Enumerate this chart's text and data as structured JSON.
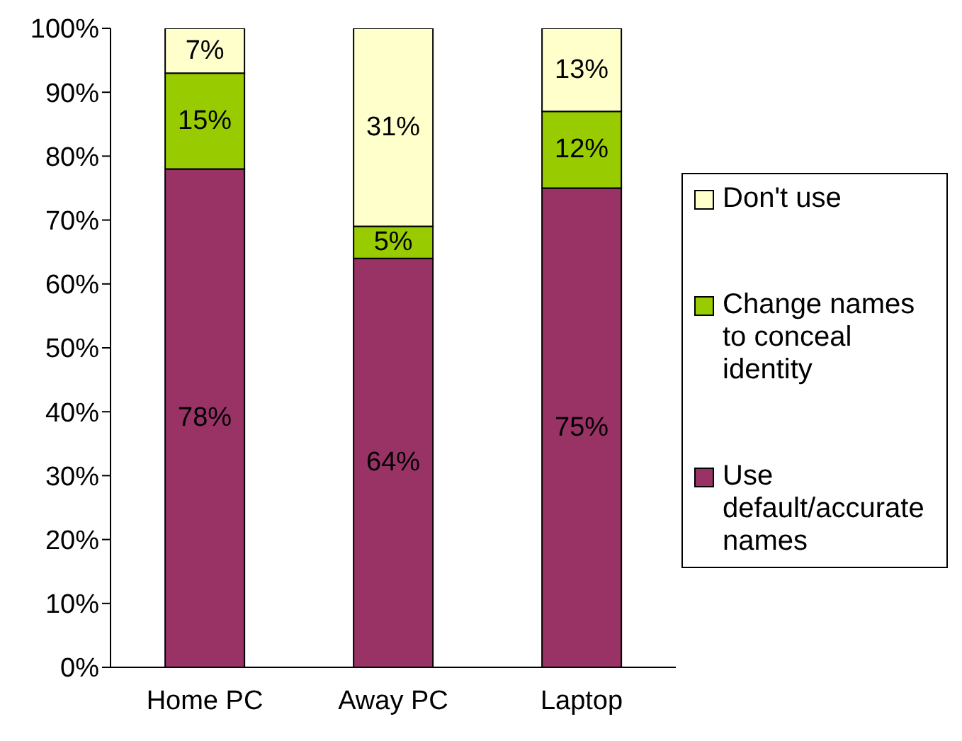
{
  "chart_data": {
    "type": "bar",
    "stacked": true,
    "categories": [
      "Home PC",
      "Away PC",
      "Laptop"
    ],
    "series": [
      {
        "name": "Use default/accurate names",
        "color": "#993366",
        "values": [
          78,
          64,
          75
        ],
        "value_labels": [
          "78%",
          "64%",
          "75%"
        ]
      },
      {
        "name": "Change names to conceal identity",
        "color": "#99cc00",
        "values": [
          15,
          5,
          12
        ],
        "value_labels": [
          "15%",
          "5%",
          "12%"
        ]
      },
      {
        "name": "Don't use",
        "color": "#ffffcc",
        "values": [
          7,
          31,
          13
        ],
        "value_labels": [
          "7%",
          "31%",
          "13%"
        ]
      }
    ],
    "ylim": [
      0,
      100
    ],
    "yticks": [
      {
        "value": 0,
        "label": "0%"
      },
      {
        "value": 10,
        "label": "10%"
      },
      {
        "value": 20,
        "label": "20%"
      },
      {
        "value": 30,
        "label": "30%"
      },
      {
        "value": 40,
        "label": "40%"
      },
      {
        "value": 50,
        "label": "50%"
      },
      {
        "value": 60,
        "label": "60%"
      },
      {
        "value": 70,
        "label": "70%"
      },
      {
        "value": 80,
        "label": "80%"
      },
      {
        "value": 90,
        "label": "90%"
      },
      {
        "value": 100,
        "label": "100%"
      }
    ],
    "grid": false,
    "legend": "right"
  }
}
